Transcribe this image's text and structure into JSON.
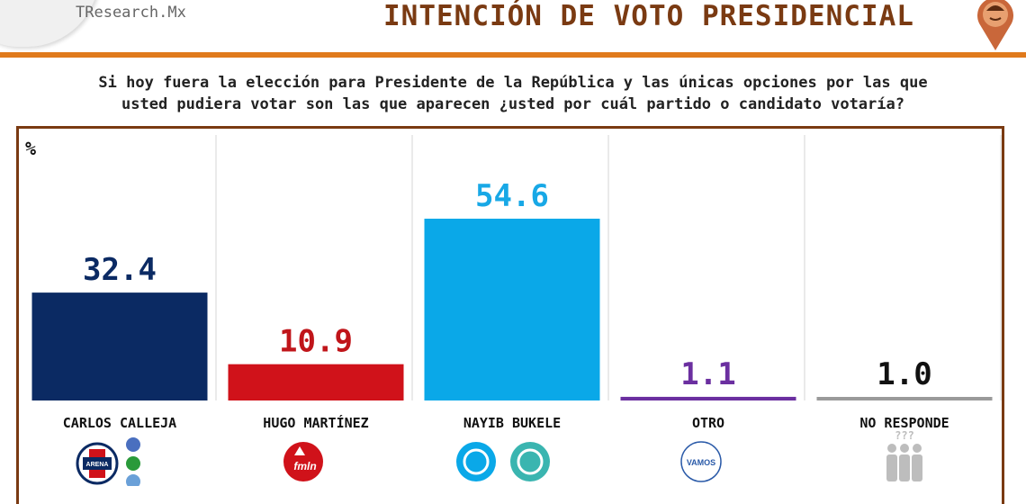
{
  "header": {
    "logo_text": "TResearch.Mx",
    "title": "INTENCIÓN DE VOTO PRESIDENCIAL"
  },
  "question": {
    "line1": "Si hoy fuera la elección para Presidente de la República y las únicas opciones por las que",
    "line2": "usted pudiera votar son las que aparecen ¿usted por cuál partido o candidato votaría?"
  },
  "chart_data": {
    "type": "bar",
    "ylabel": "%",
    "ylim": [
      0,
      70
    ],
    "grid": true,
    "categories": [
      "CARLOS CALLEJA",
      "HUGO MARTÍNEZ",
      "NAYIB BUKELE",
      "OTRO",
      "NO RESPONDE"
    ],
    "values": [
      32.4,
      10.9,
      54.6,
      1.1,
      1.0
    ],
    "value_labels": [
      "32.4",
      "10.9",
      "54.6",
      "1.1",
      "1.0"
    ],
    "colors": [
      "#0b2a63",
      "#d0121a",
      "#0aa8e8",
      "#6b2fa0",
      "#9a9a9a"
    ],
    "label_colors": [
      "#0b2a63",
      "#c0151a",
      "#18a8e6",
      "#6b2fa0",
      "#111111"
    ]
  },
  "party_logos": [
    {
      "name": "arena-logo",
      "text": "ARENA"
    },
    {
      "name": "fmln-logo",
      "text": "fmln"
    },
    {
      "name": "gana-logo",
      "text": ""
    },
    {
      "name": "vamos-logo",
      "text": "VAMOS"
    },
    {
      "name": "people-icon",
      "text": "???"
    }
  ]
}
